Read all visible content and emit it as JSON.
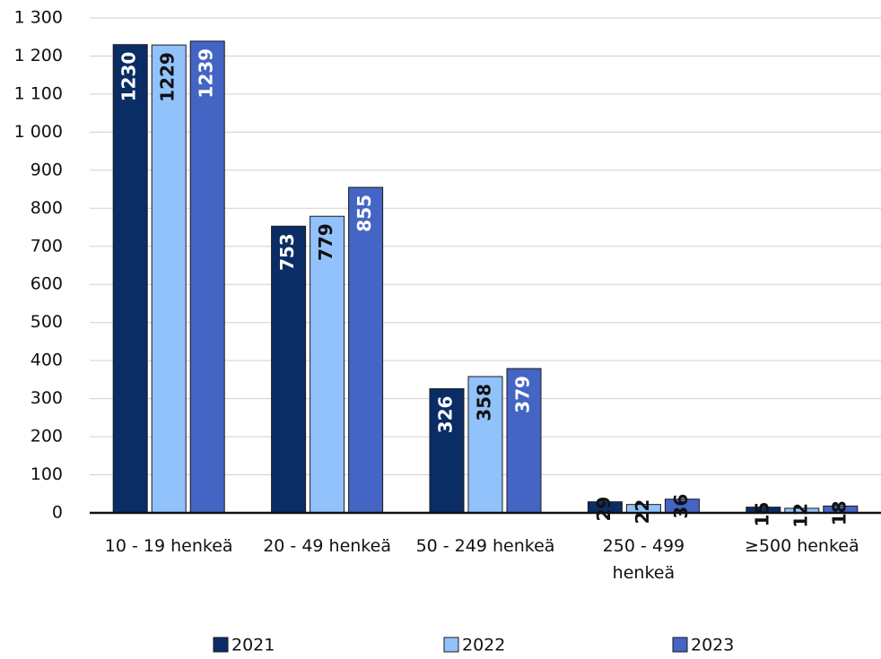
{
  "chart_data": {
    "type": "bar",
    "categories": [
      "10 - 19 henkeä",
      "20 - 49 henkeä",
      "50 - 249 henkeä",
      "250 - 499 henkeä",
      "≥500 henkeä"
    ],
    "series": [
      {
        "name": "2021",
        "color": "#0b2d66",
        "values": [
          1230,
          753,
          326,
          29,
          15
        ]
      },
      {
        "name": "2022",
        "color": "#92c2fb",
        "values": [
          1229,
          779,
          358,
          22,
          12
        ]
      },
      {
        "name": "2023",
        "color": "#4565c4",
        "values": [
          1239,
          855,
          379,
          36,
          18
        ]
      }
    ],
    "ylim": [
      0,
      1300
    ],
    "yticks": [
      0,
      100,
      200,
      300,
      400,
      500,
      600,
      700,
      800,
      900,
      {
        "value": 1000,
        "label": "1 000"
      },
      {
        "value": 1100,
        "label": "1 100"
      },
      {
        "value": 1200,
        "label": "1 200"
      },
      {
        "value": 1300,
        "label": "1 300"
      }
    ],
    "grid": true,
    "legend": "bottom"
  }
}
